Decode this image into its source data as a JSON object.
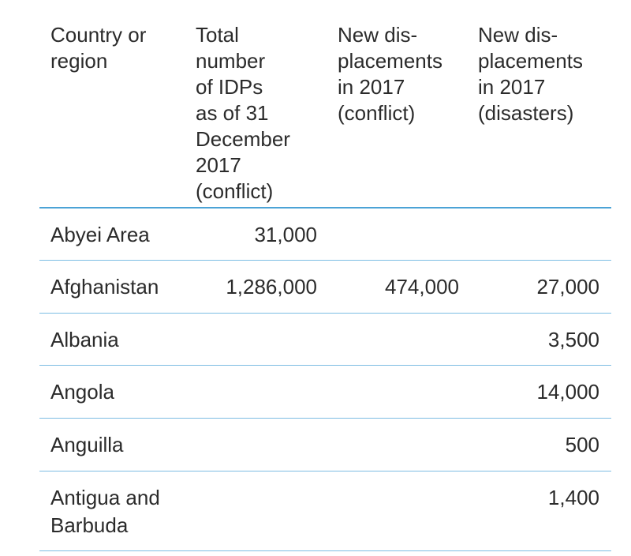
{
  "headers": {
    "country": [
      "Country or",
      "region"
    ],
    "total": [
      "Total",
      "number",
      "of IDPs",
      "as of 31",
      "December",
      "2017",
      "(conflict)"
    ],
    "new_conflict": [
      "New dis-",
      "placements",
      "in 2017",
      "(conflict)"
    ],
    "new_disasters": [
      "New dis-",
      "placements",
      "in 2017",
      "(disasters)"
    ]
  },
  "rows": [
    {
      "country": [
        "Abyei Area"
      ],
      "total": "31,000",
      "new_conflict": "",
      "new_disasters": ""
    },
    {
      "country": [
        "Afghanistan"
      ],
      "total": "1,286,000",
      "new_conflict": "474,000",
      "new_disasters": "27,000"
    },
    {
      "country": [
        "Albania"
      ],
      "total": "",
      "new_conflict": "",
      "new_disasters": "3,500"
    },
    {
      "country": [
        "Angola"
      ],
      "total": "",
      "new_conflict": "",
      "new_disasters": "14,000"
    },
    {
      "country": [
        "Anguilla"
      ],
      "total": "",
      "new_conflict": "",
      "new_disasters": "500"
    },
    {
      "country": [
        "Antigua and",
        "Barbuda"
      ],
      "total": "",
      "new_conflict": "",
      "new_disasters": "1,400"
    }
  ],
  "colors": {
    "rule_accent": "#4ba3d6",
    "rule_light": "#7dbde3",
    "text": "#2b2b2b"
  }
}
